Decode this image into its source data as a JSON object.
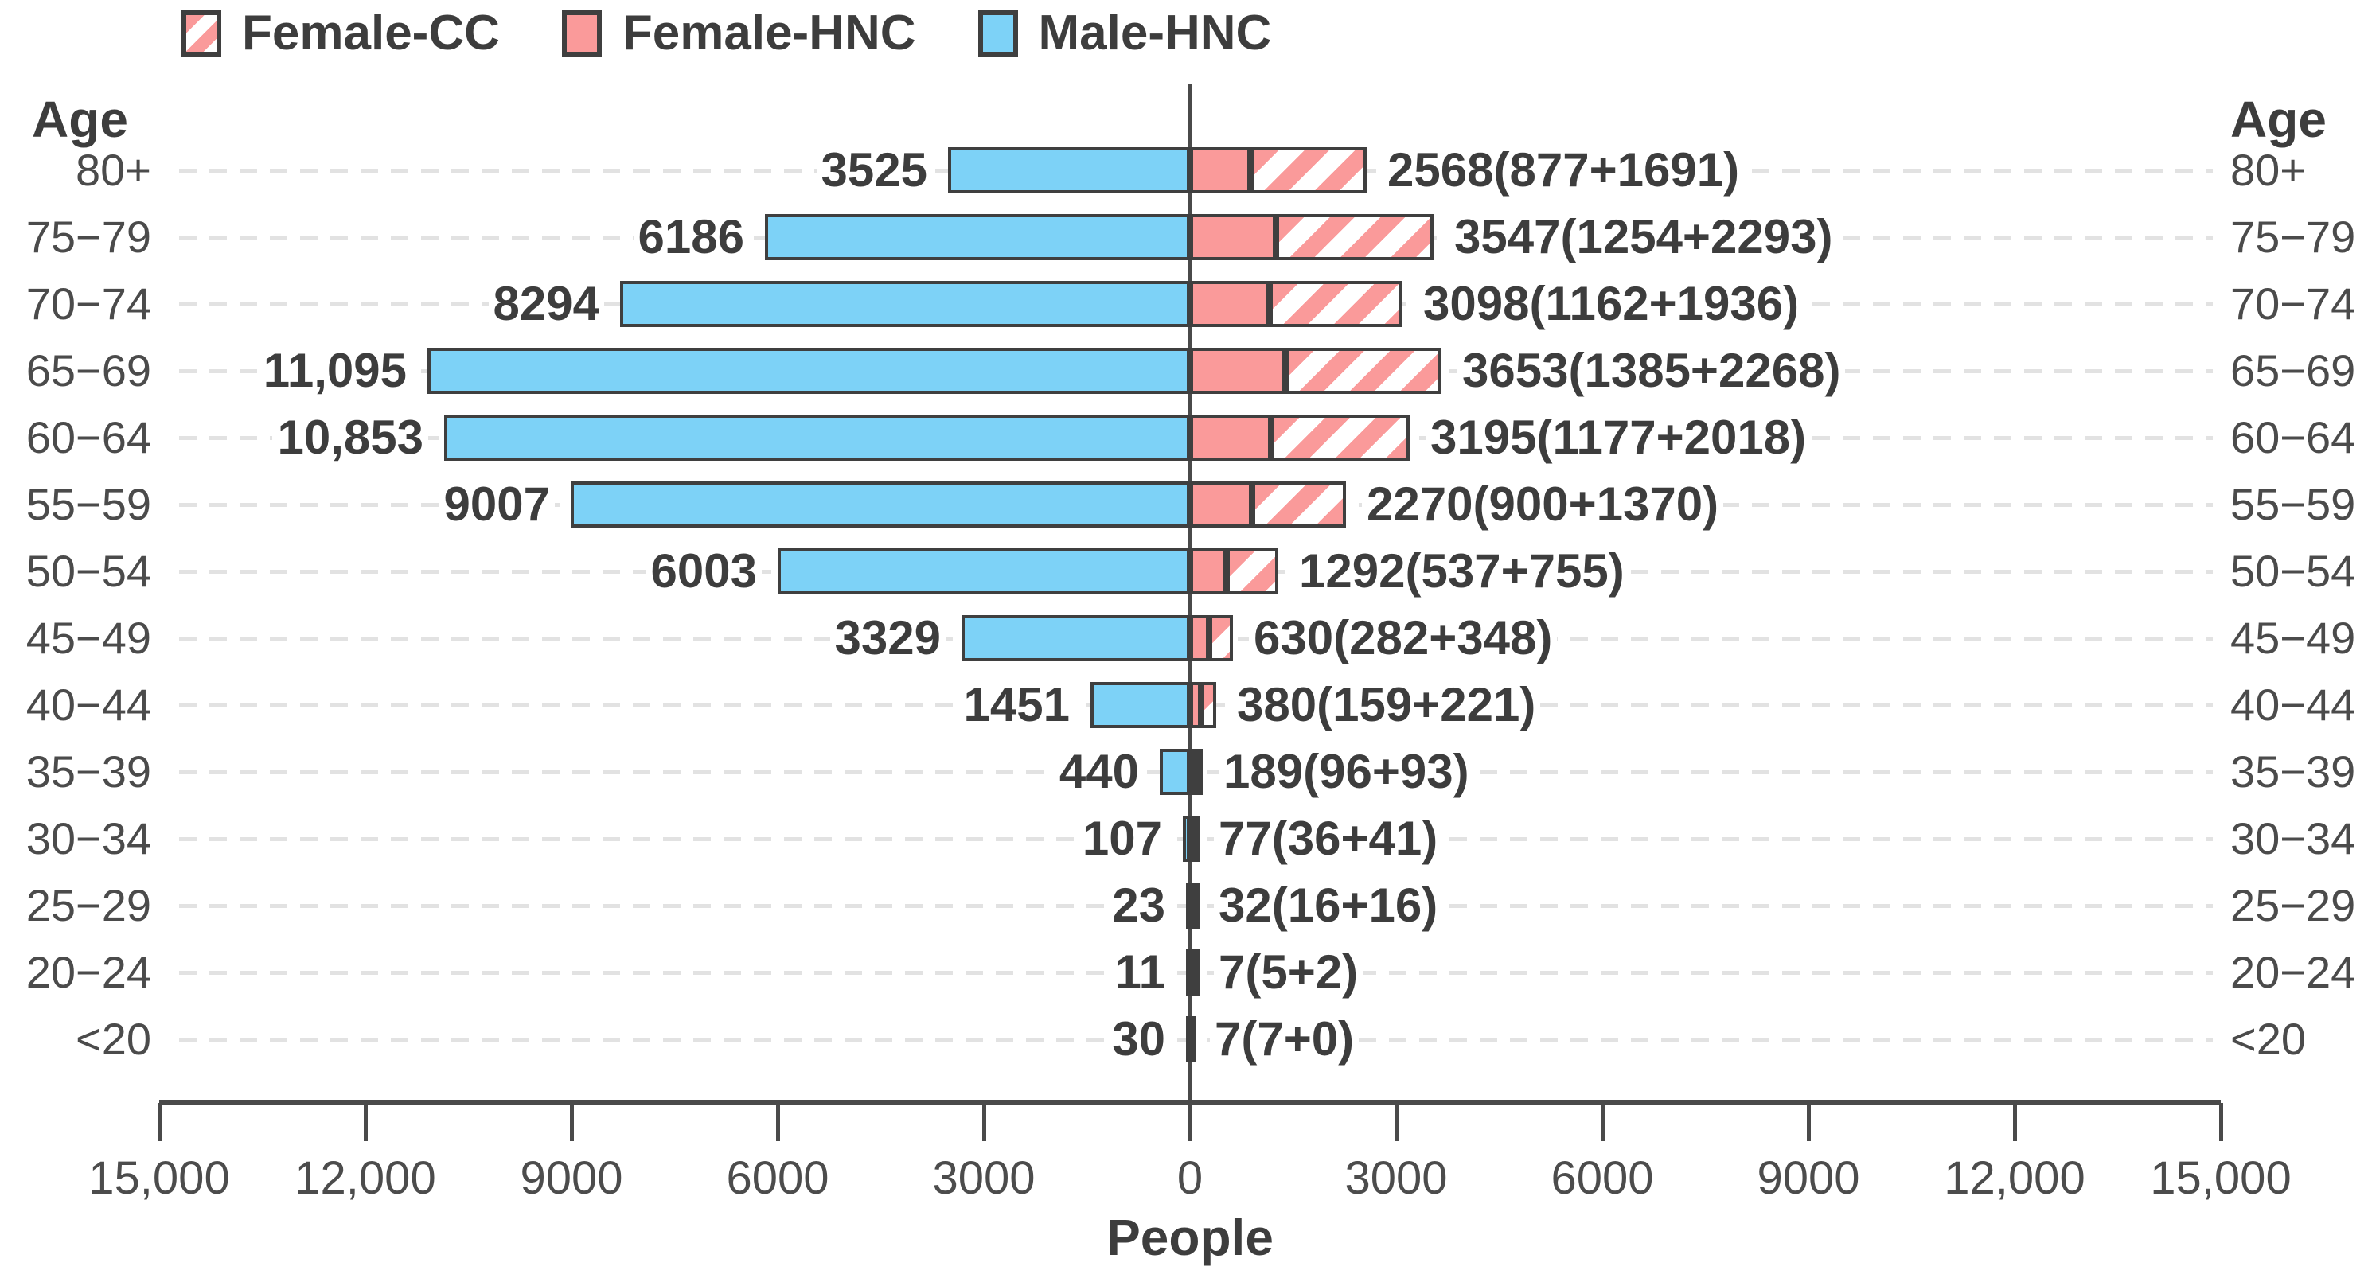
{
  "legend": [
    {
      "label": "Female-CC",
      "swatch": "hatched-pink"
    },
    {
      "label": "Female-HNC",
      "swatch": "solid-pink"
    },
    {
      "label": "Male-HNC",
      "swatch": "solid-blue"
    }
  ],
  "axis": {
    "left_header": "Age",
    "right_header": "Age",
    "xlabel": "People"
  },
  "colors": {
    "male_fill": "#7dd2f7",
    "female_fill": "#fa9a9a",
    "hatch_white": "#ffffff",
    "outline": "#3f3f3f",
    "grid": "#e2e2e2",
    "axis_line": "#4a4a4a",
    "value_text": "#3d3d3d",
    "tick_text": "#4c4c4c"
  },
  "chart_data": {
    "type": "bar",
    "subtype": "population-pyramid",
    "orientation": "horizontal",
    "title": "",
    "xlabel": "People",
    "ylabel_left": "Age",
    "ylabel_right": "Age",
    "xlim": [
      -15000,
      15000
    ],
    "grid": "dashed-horizontal",
    "legend_position": "top-left",
    "categories": [
      "80+",
      "75−79",
      "70−74",
      "65−69",
      "60−64",
      "55−59",
      "50−54",
      "45−49",
      "40−44",
      "35−39",
      "30−34",
      "25−29",
      "20−24",
      "<20"
    ],
    "series": [
      {
        "name": "Male-HNC",
        "side": "left",
        "values": [
          3525,
          6186,
          8294,
          11095,
          10853,
          9007,
          6003,
          3329,
          1451,
          440,
          107,
          23,
          11,
          30
        ]
      },
      {
        "name": "Female-HNC",
        "side": "right",
        "values": [
          877,
          1254,
          1162,
          1385,
          1177,
          900,
          537,
          282,
          159,
          96,
          36,
          16,
          5,
          7
        ]
      },
      {
        "name": "Female-CC",
        "side": "right",
        "values": [
          1691,
          2293,
          1936,
          2268,
          2018,
          1370,
          755,
          348,
          221,
          93,
          41,
          16,
          2,
          0
        ]
      }
    ],
    "female_totals": [
      2568,
      3547,
      3098,
      3653,
      3195,
      2270,
      1292,
      630,
      380,
      189,
      77,
      32,
      7,
      7
    ],
    "male_bar_labels": [
      "3525",
      "6186",
      "8294",
      "11,095",
      "10,853",
      "9007",
      "6003",
      "3329",
      "1451",
      "440",
      "107",
      "23",
      "11",
      "30"
    ],
    "female_bar_labels": [
      "2568(877+1691)",
      "3547(1254+2293)",
      "3098(1162+1936)",
      "3653(1385+2268)",
      "3195(1177+2018)",
      "2270(900+1370)",
      "1292(537+755)",
      "630(282+348)",
      "380(159+221)",
      "189(96+93)",
      "77(36+41)",
      "32(16+16)",
      "7(5+2)",
      "7(7+0)"
    ],
    "x_ticks": [
      {
        "value": -15000,
        "label": "15,000"
      },
      {
        "value": -12000,
        "label": "12,000"
      },
      {
        "value": -9000,
        "label": "9000"
      },
      {
        "value": -6000,
        "label": "6000"
      },
      {
        "value": -3000,
        "label": "3000"
      },
      {
        "value": 0,
        "label": "0"
      },
      {
        "value": 3000,
        "label": "3000"
      },
      {
        "value": 6000,
        "label": "6000"
      },
      {
        "value": 9000,
        "label": "9000"
      },
      {
        "value": 12000,
        "label": "12,000"
      },
      {
        "value": 15000,
        "label": "15,000"
      }
    ]
  }
}
